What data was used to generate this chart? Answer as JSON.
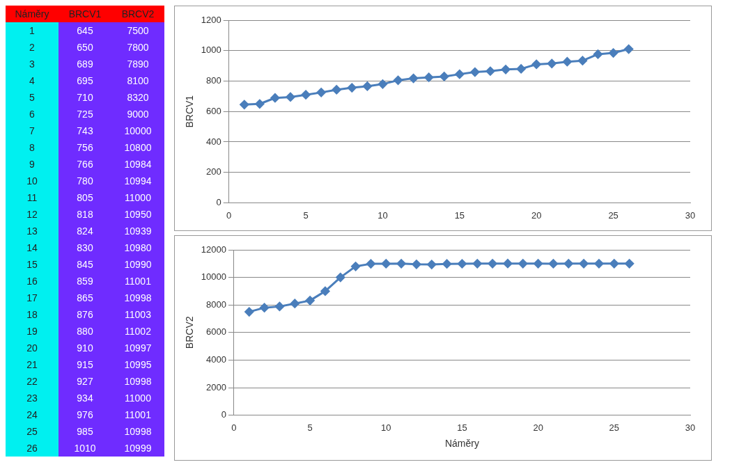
{
  "chart_data": [
    {
      "type": "heatmap",
      "ylabel": "Náměry",
      "categories": [
        "BRCV1",
        "BRCV2"
      ],
      "y_categories": [
        "1",
        "2",
        "3",
        "4",
        "5",
        "6",
        "7",
        "8",
        "9",
        "10",
        "11",
        "12",
        "13",
        "14",
        "15",
        "16",
        "17",
        "18",
        "19",
        "20",
        "21",
        "22",
        "23",
        "24",
        "25",
        "26"
      ],
      "colors": [
        "#6f2cff",
        "#6f2cff"
      ],
      "data_labels": true,
      "cells": [
        [
          645,
          7500
        ],
        [
          650,
          7800
        ],
        [
          689,
          7890
        ],
        [
          695,
          8100
        ],
        [
          710,
          8320
        ],
        [
          725,
          9000
        ],
        [
          743,
          10000
        ],
        [
          756,
          10800
        ],
        [
          766,
          10984
        ],
        [
          780,
          10994
        ],
        [
          805,
          11000
        ],
        [
          818,
          10950
        ],
        [
          824,
          10939
        ],
        [
          830,
          10980
        ],
        [
          845,
          10990
        ],
        [
          859,
          11001
        ],
        [
          865,
          10998
        ],
        [
          876,
          11003
        ],
        [
          880,
          11002
        ],
        [
          910,
          10997
        ],
        [
          915,
          10995
        ],
        [
          927,
          10998
        ],
        [
          934,
          11000
        ],
        [
          976,
          11001
        ],
        [
          985,
          10998
        ],
        [
          1010,
          10999
        ]
      ]
    },
    {
      "type": "line",
      "ylabel": "BRCV1",
      "x": [
        1,
        2,
        3,
        4,
        5,
        6,
        7,
        8,
        9,
        10,
        11,
        12,
        13,
        14,
        15,
        16,
        17,
        18,
        19,
        20,
        21,
        22,
        23,
        24,
        25,
        26
      ],
      "series": [
        {
          "color": "#4a7ebb",
          "values": [
            645,
            650,
            689,
            695,
            710,
            725,
            743,
            756,
            766,
            780,
            805,
            818,
            824,
            830,
            845,
            859,
            865,
            876,
            880,
            910,
            915,
            927,
            934,
            976,
            985,
            1010
          ]
        }
      ],
      "ylim": [
        0,
        1200
      ],
      "yticks": [
        0,
        200,
        400,
        600,
        800,
        1000,
        1200
      ],
      "xlim": [
        0,
        30
      ],
      "xticks": [
        0,
        5,
        10,
        15,
        20,
        25,
        30
      ],
      "grid": "y",
      "legend": false,
      "marker": "diamond"
    },
    {
      "type": "line",
      "xlabel": "Náměry",
      "ylabel": "BRCV2",
      "x": [
        1,
        2,
        3,
        4,
        5,
        6,
        7,
        8,
        9,
        10,
        11,
        12,
        13,
        14,
        15,
        16,
        17,
        18,
        19,
        20,
        21,
        22,
        23,
        24,
        25,
        26
      ],
      "series": [
        {
          "color": "#4a7ebb",
          "values": [
            7500,
            7800,
            7890,
            8100,
            8320,
            9000,
            10000,
            10800,
            10984,
            10994,
            11000,
            10950,
            10939,
            10980,
            10990,
            11001,
            10998,
            11003,
            11002,
            10997,
            10995,
            10998,
            11000,
            11001,
            10998,
            10999
          ]
        }
      ],
      "ylim": [
        0,
        12000
      ],
      "yticks": [
        0,
        2000,
        4000,
        6000,
        8000,
        10000,
        12000
      ],
      "xlim": [
        0,
        30
      ],
      "xticks": [
        0,
        5,
        10,
        15,
        20,
        25,
        30
      ],
      "grid": "y",
      "legend": false,
      "marker": "diamond"
    }
  ]
}
